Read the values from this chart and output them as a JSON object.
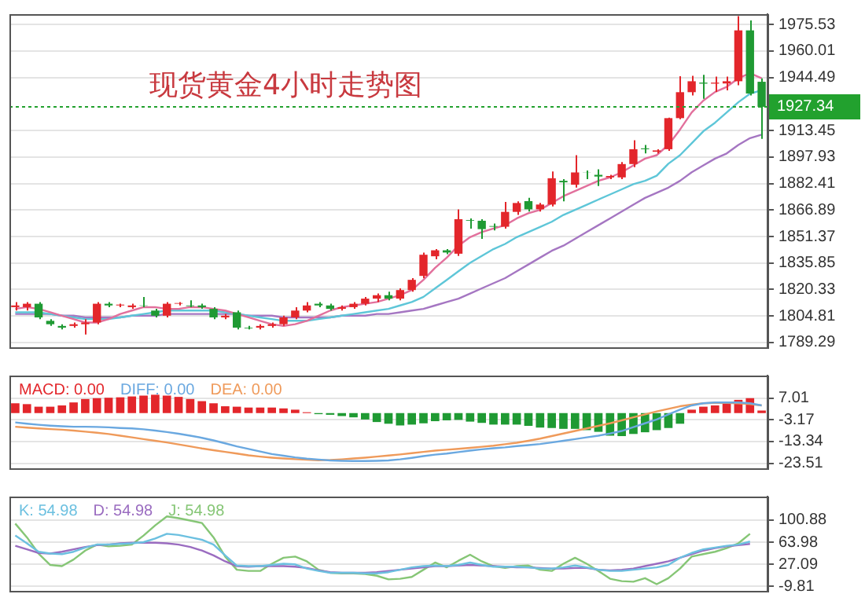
{
  "chart_data": [
    {
      "type": "candlestick",
      "title": "现货黄金4小时走势图",
      "categories": [
        null,
        null,
        null,
        null,
        null,
        null,
        null,
        null,
        null,
        null,
        null,
        null,
        null,
        null,
        null,
        null,
        null,
        null,
        null,
        null,
        null,
        null,
        null,
        null,
        null,
        null,
        null,
        null,
        null,
        null,
        null,
        null,
        null,
        null,
        null,
        null,
        null,
        null,
        null,
        null,
        null,
        null,
        null,
        null,
        null,
        null,
        null,
        null,
        null,
        null,
        null,
        null,
        null,
        null,
        null,
        null,
        null,
        null,
        null,
        null,
        null,
        null,
        null,
        null,
        null
      ],
      "ohlc": [
        [
          1810,
          1813,
          1808,
          1811
        ],
        [
          1810,
          1813,
          1808,
          1812
        ],
        [
          1812,
          1813,
          1803,
          1804
        ],
        [
          1802,
          1803,
          1799,
          1800
        ],
        [
          1799,
          1800,
          1797,
          1798
        ],
        [
          1799,
          1801,
          1798,
          1800
        ],
        [
          1800,
          1803,
          1794,
          1801
        ],
        [
          1801,
          1813,
          1800,
          1812
        ],
        [
          1812,
          1813,
          1810,
          1811
        ],
        [
          1811,
          1812,
          1810,
          1811.5
        ],
        [
          1810,
          1812,
          1809,
          1811
        ],
        [
          1811,
          1816,
          1810,
          1810.8
        ],
        [
          1808,
          1809,
          1804,
          1805
        ],
        [
          1805,
          1813,
          1804,
          1812
        ],
        [
          1812,
          1813,
          1811,
          1812.4
        ],
        [
          1811,
          1814,
          1810,
          1810.6
        ],
        [
          1811,
          1812,
          1809,
          1810
        ],
        [
          1809,
          1810,
          1803,
          1804
        ],
        [
          1804,
          1806,
          1803,
          1805
        ],
        [
          1807,
          1808,
          1797,
          1798
        ],
        [
          1798,
          1799,
          1797,
          1797.6
        ],
        [
          1798,
          1800,
          1797,
          1799
        ],
        [
          1799,
          1801,
          1798,
          1800
        ],
        [
          1800,
          1805,
          1799,
          1804
        ],
        [
          1804,
          1810,
          1803,
          1808
        ],
        [
          1808,
          1813,
          1807,
          1811
        ],
        [
          1812,
          1813,
          1810,
          1811
        ],
        [
          1811,
          1812,
          1808,
          1809
        ],
        [
          1809,
          1811,
          1808,
          1810
        ],
        [
          1810,
          1813,
          1809,
          1812
        ],
        [
          1812,
          1816,
          1811,
          1815
        ],
        [
          1815,
          1818,
          1813,
          1817
        ],
        [
          1817,
          1819,
          1814,
          1815
        ],
        [
          1815,
          1821,
          1814,
          1820
        ],
        [
          1820,
          1827,
          1819,
          1826
        ],
        [
          1828.3,
          1842,
          1827,
          1840.7
        ],
        [
          1839.8,
          1844,
          1838,
          1843.3
        ],
        [
          1843.3,
          1844,
          1841,
          1842
        ],
        [
          1841.3,
          1867.3,
          1840,
          1861.5
        ],
        [
          1861,
          1862,
          1856,
          1860.6
        ],
        [
          1860.6,
          1861.5,
          1850,
          1855.7
        ],
        [
          1857.5,
          1859,
          1855,
          1857.1
        ],
        [
          1857.1,
          1871.6,
          1856,
          1865.8
        ],
        [
          1865.8,
          1872,
          1864,
          1871
        ],
        [
          1872.1,
          1874,
          1866,
          1867.3
        ],
        [
          1867.3,
          1871,
          1866,
          1870.1
        ],
        [
          1870.1,
          1889.4,
          1869,
          1885.5
        ],
        [
          1884,
          1885,
          1872,
          1883.1
        ],
        [
          1881.7,
          1899,
          1880,
          1888.9
        ],
        [
          1889,
          1890,
          1885,
          1888.9
        ],
        [
          1887.5,
          1890.7,
          1881,
          1886.5
        ],
        [
          1886,
          1887.5,
          1885,
          1886.8
        ],
        [
          1886,
          1895,
          1885,
          1893.8
        ],
        [
          1893.8,
          1907.7,
          1892,
          1902.5
        ],
        [
          1903,
          1905,
          1900,
          1902.5
        ],
        [
          1901,
          1902.5,
          1900,
          1901.8
        ],
        [
          1902.5,
          1921,
          1901.5,
          1920.7
        ],
        [
          1920.7,
          1945.2,
          1920,
          1935.9
        ],
        [
          1935.9,
          1945.5,
          1934,
          1942.3
        ],
        [
          1941.5,
          1946,
          1932,
          1940.9
        ],
        [
          1940.9,
          1945,
          1936,
          1941.5
        ],
        [
          1941,
          1945,
          1937,
          1942.3
        ],
        [
          1942.3,
          1980.5,
          1940,
          1972.1
        ],
        [
          1972.1,
          1977.9,
          1934,
          1935.1
        ],
        [
          1942,
          1944,
          1908.6,
          1927.34
        ]
      ],
      "colors": [
        "#e3262b",
        "#e3262b",
        "#1f9a33",
        "#1f9a33",
        "#1f9a33",
        "#e3262b",
        "#e3262b",
        "#e3262b",
        "#1f9a33",
        "#e3262b",
        "#e3262b",
        "#1f9a33",
        "#1f9a33",
        "#e3262b",
        "#e3262b",
        "#1f9a33",
        "#1f9a33",
        "#1f9a33",
        "#e3262b",
        "#1f9a33",
        "#1f9a33",
        "#e3262b",
        "#e3262b",
        "#e3262b",
        "#e3262b",
        "#e3262b",
        "#1f9a33",
        "#1f9a33",
        "#e3262b",
        "#e3262b",
        "#e3262b",
        "#e3262b",
        "#1f9a33",
        "#e3262b",
        "#e3262b",
        "#e3262b",
        "#e3262b",
        "#1f9a33",
        "#e3262b",
        "#1f9a33",
        "#1f9a33",
        "#1f9a33",
        "#e3262b",
        "#e3262b",
        "#1f9a33",
        "#e3262b",
        "#e3262b",
        "#1f9a33",
        "#e3262b",
        "#1f9a33",
        "#1f9a33",
        "#e3262b",
        "#e3262b",
        "#e3262b",
        "#1f9a33",
        "#e3262b",
        "#e3262b",
        "#e3262b",
        "#e3262b",
        "#1f9a33",
        "#e3262b",
        "#e3262b",
        "#e3262b",
        "#1f9a33",
        "#1f9a33"
      ],
      "series": [
        {
          "type": "line",
          "color": "#e2709c",
          "values": [
            1809,
            1810,
            1809,
            1807,
            1805,
            1803,
            1801,
            1801,
            1803,
            1806,
            1808,
            1810,
            1810,
            1809,
            1809,
            1810,
            1810,
            1809,
            1808,
            1806,
            1804,
            1802,
            1800,
            1799,
            1800,
            1802,
            1805,
            1808,
            1810,
            1811,
            1812,
            1813,
            1815,
            1817,
            1820,
            1826,
            1833,
            1839,
            1846,
            1851,
            1854,
            1856,
            1858,
            1862,
            1865,
            1867,
            1871,
            1875,
            1878,
            1881,
            1884,
            1886,
            1889,
            1893,
            1897,
            1899,
            1905,
            1914,
            1924,
            1931,
            1936,
            1939,
            1944,
            1947,
            1944
          ]
        },
        {
          "type": "line",
          "color": "#5ec6d8",
          "values": [
            1807,
            1807,
            1807,
            1806,
            1805,
            1804,
            1803,
            1803,
            1803,
            1804,
            1805,
            1806,
            1807,
            1808,
            1808,
            1808,
            1808,
            1808,
            1807,
            1806,
            1805,
            1804,
            1803,
            1802,
            1802,
            1802,
            1803,
            1804,
            1805,
            1806,
            1807,
            1808,
            1809,
            1811,
            1813,
            1816,
            1821,
            1826,
            1831,
            1836,
            1840,
            1844,
            1847,
            1851,
            1854,
            1857,
            1860,
            1864,
            1867,
            1870,
            1873,
            1876,
            1879,
            1882,
            1884,
            1887,
            1894,
            1899,
            1906,
            1913,
            1918,
            1924,
            1930,
            1935,
            1937
          ]
        },
        {
          "type": "line",
          "color": "#a576c2",
          "values": [
            1806,
            1806,
            1806,
            1806,
            1805,
            1805,
            1804,
            1804,
            1804,
            1804,
            1805,
            1805,
            1805,
            1806,
            1806,
            1806,
            1806,
            1806,
            1806,
            1806,
            1805,
            1805,
            1805,
            1804,
            1804,
            1804,
            1804,
            1804,
            1805,
            1805,
            1805,
            1806,
            1806,
            1807,
            1808,
            1809,
            1811,
            1813,
            1815,
            1818,
            1821,
            1824,
            1827,
            1831,
            1835,
            1839,
            1843,
            1846,
            1850,
            1854,
            1858,
            1862,
            1866,
            1870,
            1874,
            1877,
            1880,
            1884,
            1889,
            1893,
            1897,
            1900,
            1905,
            1909,
            1911
          ]
        }
      ],
      "ylim": [
        1786.5,
        1981.6
      ],
      "yticks": [
        1975.53,
        1960.01,
        1944.49,
        1913.45,
        1897.93,
        1882.41,
        1866.89,
        1851.37,
        1835.85,
        1820.33,
        1804.81,
        1789.29
      ],
      "ref_lines": [
        {
          "axis": "y",
          "value": 1927.34,
          "label": "1927.34",
          "color": "#22a12e",
          "line_style": "dotted"
        }
      ],
      "grid": "y",
      "tick_labels": "y"
    },
    {
      "type": "bar",
      "categories": [
        null,
        null,
        null,
        null,
        null,
        null,
        null,
        null,
        null,
        null,
        null,
        null,
        null,
        null,
        null,
        null,
        null,
        null,
        null,
        null,
        null,
        null,
        null,
        null,
        null,
        null,
        null,
        null,
        null,
        null,
        null,
        null,
        null,
        null,
        null,
        null,
        null,
        null,
        null,
        null,
        null,
        null,
        null,
        null,
        null,
        null,
        null,
        null,
        null,
        null,
        null,
        null,
        null,
        null,
        null,
        null,
        null,
        null,
        null,
        null,
        null,
        null,
        null,
        null,
        null
      ],
      "series": [
        {
          "name": "MACD: 0.00",
          "color": "#e3262b",
          "colors": [
            "#e3262b",
            "#e3262b",
            "#e3262b",
            "#e3262b",
            "#e3262b",
            "#e3262b",
            "#e3262b",
            "#e3262b",
            "#e3262b",
            "#e3262b",
            "#e3262b",
            "#e3262b",
            "#e3262b",
            "#e3262b",
            "#e3262b",
            "#e3262b",
            "#e3262b",
            "#e3262b",
            "#e3262b",
            "#e3262b",
            "#e3262b",
            "#e3262b",
            "#e3262b",
            "#e3262b",
            "#e3262b",
            "#e3262b",
            "#1f9a33",
            "#1f9a33",
            "#1f9a33",
            "#1f9a33",
            "#1f9a33",
            "#1f9a33",
            "#1f9a33",
            "#1f9a33",
            "#1f9a33",
            "#1f9a33",
            "#1f9a33",
            "#1f9a33",
            "#1f9a33",
            "#1f9a33",
            "#1f9a33",
            "#1f9a33",
            "#1f9a33",
            "#1f9a33",
            "#1f9a33",
            "#1f9a33",
            "#1f9a33",
            "#1f9a33",
            "#1f9a33",
            "#1f9a33",
            "#1f9a33",
            "#1f9a33",
            "#1f9a33",
            "#1f9a33",
            "#1f9a33",
            "#1f9a33",
            "#1f9a33",
            "#1f9a33",
            "#e3262b",
            "#e3262b",
            "#e3262b",
            "#e3262b",
            "#e3262b",
            "#e3262b",
            "#e3262b"
          ],
          "values": [
            4.6,
            4.2,
            3.0,
            3.0,
            3.6,
            5.0,
            6.6,
            7.0,
            7.2,
            7.4,
            7.8,
            8.2,
            8.6,
            8.2,
            7.6,
            6.6,
            5.6,
            4.6,
            3.2,
            3.0,
            2.6,
            2.6,
            2.6,
            2.2,
            1.6,
            0.4,
            -0.5,
            -0.8,
            -1.4,
            -2.0,
            -3.0,
            -4.2,
            -5.0,
            -5.8,
            -5.4,
            -4.8,
            -3.8,
            -3.4,
            -3.2,
            -4.0,
            -4.6,
            -5.4,
            -5.4,
            -5.4,
            -6.0,
            -6.8,
            -7.0,
            -7.4,
            -7.4,
            -8.0,
            -8.8,
            -10.6,
            -10.8,
            -9.8,
            -9.0,
            -8.0,
            -7.0,
            -5.0,
            1.6,
            3.0,
            3.6,
            5.0,
            6.2,
            7.0,
            1.2
          ]
        },
        {
          "name": "DIFF: 0.00",
          "type": "line",
          "color": "#6aa8e0",
          "values": [
            -4.4,
            -5.0,
            -5.5,
            -5.9,
            -6.2,
            -6.4,
            -6.4,
            -6.5,
            -6.7,
            -7.0,
            -7.2,
            -7.6,
            -8.2,
            -8.9,
            -9.7,
            -10.6,
            -11.6,
            -12.8,
            -14.2,
            -15.6,
            -16.8,
            -18.0,
            -19.2,
            -20.0,
            -20.8,
            -21.4,
            -21.8,
            -22.2,
            -22.4,
            -22.5,
            -22.5,
            -22.4,
            -22.2,
            -21.7,
            -21.0,
            -20.2,
            -19.5,
            -19.0,
            -18.3,
            -17.6,
            -17.0,
            -16.5,
            -16.1,
            -15.5,
            -15.0,
            -14.5,
            -13.8,
            -13.0,
            -12.2,
            -11.4,
            -10.6,
            -9.6,
            -8.4,
            -6.6,
            -4.8,
            -3.0,
            -0.6,
            1.6,
            3.6,
            4.6,
            5.0,
            5.0,
            5.0,
            4.6,
            3.6
          ]
        },
        {
          "name": "DEA: 0.00",
          "type": "line",
          "color": "#ef9a5a",
          "values": [
            -6.4,
            -6.8,
            -7.2,
            -7.5,
            -7.8,
            -8.2,
            -8.7,
            -9.2,
            -9.8,
            -10.6,
            -11.4,
            -12.2,
            -13.0,
            -13.8,
            -14.7,
            -15.6,
            -16.6,
            -17.4,
            -18.2,
            -19.0,
            -19.8,
            -20.4,
            -20.9,
            -21.3,
            -21.6,
            -21.9,
            -22.1,
            -22.0,
            -21.7,
            -21.3,
            -20.9,
            -20.4,
            -19.9,
            -19.4,
            -18.8,
            -18.2,
            -17.6,
            -17.2,
            -16.8,
            -16.3,
            -15.8,
            -15.3,
            -14.6,
            -13.9,
            -13.0,
            -12.0,
            -10.8,
            -9.6,
            -8.4,
            -7.2,
            -6.0,
            -4.8,
            -3.4,
            -2.0,
            -0.6,
            0.8,
            2.0,
            3.2,
            4.0,
            4.6,
            4.8,
            4.8,
            4.6,
            4.2,
            3.6
          ]
        }
      ],
      "ylim": [
        -25.9,
        17.6
      ],
      "yticks": [
        7.01,
        -3.17,
        -13.34,
        -23.51
      ],
      "legend": "top left",
      "grid": "y",
      "tick_labels": "y"
    },
    {
      "type": "line",
      "categories": [
        null,
        null,
        null,
        null,
        null,
        null,
        null,
        null,
        null,
        null,
        null,
        null,
        null,
        null,
        null,
        null,
        null,
        null,
        null,
        null,
        null,
        null,
        null,
        null,
        null,
        null,
        null,
        null,
        null,
        null,
        null,
        null,
        null,
        null,
        null,
        null,
        null,
        null,
        null,
        null,
        null,
        null,
        null,
        null,
        null,
        null,
        null,
        null,
        null,
        null,
        null,
        null,
        null,
        null,
        null,
        null,
        null,
        null,
        null,
        null,
        null,
        null,
        null,
        null,
        null
      ],
      "series": [
        {
          "name": "K: 54.98",
          "color": "#6cc0e0",
          "values": [
            75,
            62,
            48,
            45,
            44,
            48,
            55,
            60,
            60,
            61,
            62,
            64,
            70,
            78,
            76,
            72,
            68,
            60,
            42,
            25,
            24,
            24,
            26,
            28,
            27,
            20,
            16,
            13,
            13,
            13,
            12,
            12,
            14,
            18,
            22,
            24,
            25,
            24,
            26,
            30,
            26,
            23,
            23,
            23,
            22,
            20,
            20,
            22,
            25,
            22,
            18,
            16,
            16,
            18,
            20,
            22,
            26,
            38,
            46,
            52,
            55,
            58,
            60,
            65,
            null
          ]
        },
        {
          "name": "D: 54.98",
          "color": "#9a6cc0",
          "values": [
            58,
            52,
            46,
            45,
            48,
            52,
            56,
            59,
            60,
            62,
            63,
            63,
            63,
            62,
            60,
            56,
            50,
            42,
            32,
            24,
            23,
            24,
            24,
            24,
            23,
            21,
            17,
            14,
            13,
            13,
            13,
            14,
            16,
            18,
            20,
            22,
            24,
            24,
            25,
            26,
            25,
            24,
            23,
            22,
            22,
            21,
            20,
            20,
            21,
            21,
            18,
            17,
            18,
            20,
            24,
            28,
            32,
            38,
            44,
            50,
            54,
            57,
            59,
            61,
            null
          ]
        },
        {
          "name": "J: 54.98",
          "color": "#86c676",
          "values": [
            95,
            72,
            45,
            26,
            24,
            35,
            50,
            60,
            57,
            58,
            60,
            75,
            92,
            107,
            104,
            100,
            96,
            72,
            40,
            18,
            16,
            16,
            28,
            38,
            40,
            32,
            18,
            13,
            12,
            12,
            11,
            8,
            2,
            3,
            6,
            18,
            30,
            22,
            33,
            43,
            32,
            24,
            21,
            24,
            25,
            18,
            16,
            28,
            38,
            28,
            16,
            3,
            -1,
            -2,
            4,
            -6,
            4,
            20,
            40,
            44,
            48,
            54,
            62,
            78,
            null
          ]
        }
      ],
      "ylim": [
        -17.2,
        140
      ],
      "yticks": [
        100.88,
        63.98,
        27.09,
        -9.81
      ],
      "legend": "top left",
      "grid": "y",
      "tick_labels": "y"
    }
  ]
}
